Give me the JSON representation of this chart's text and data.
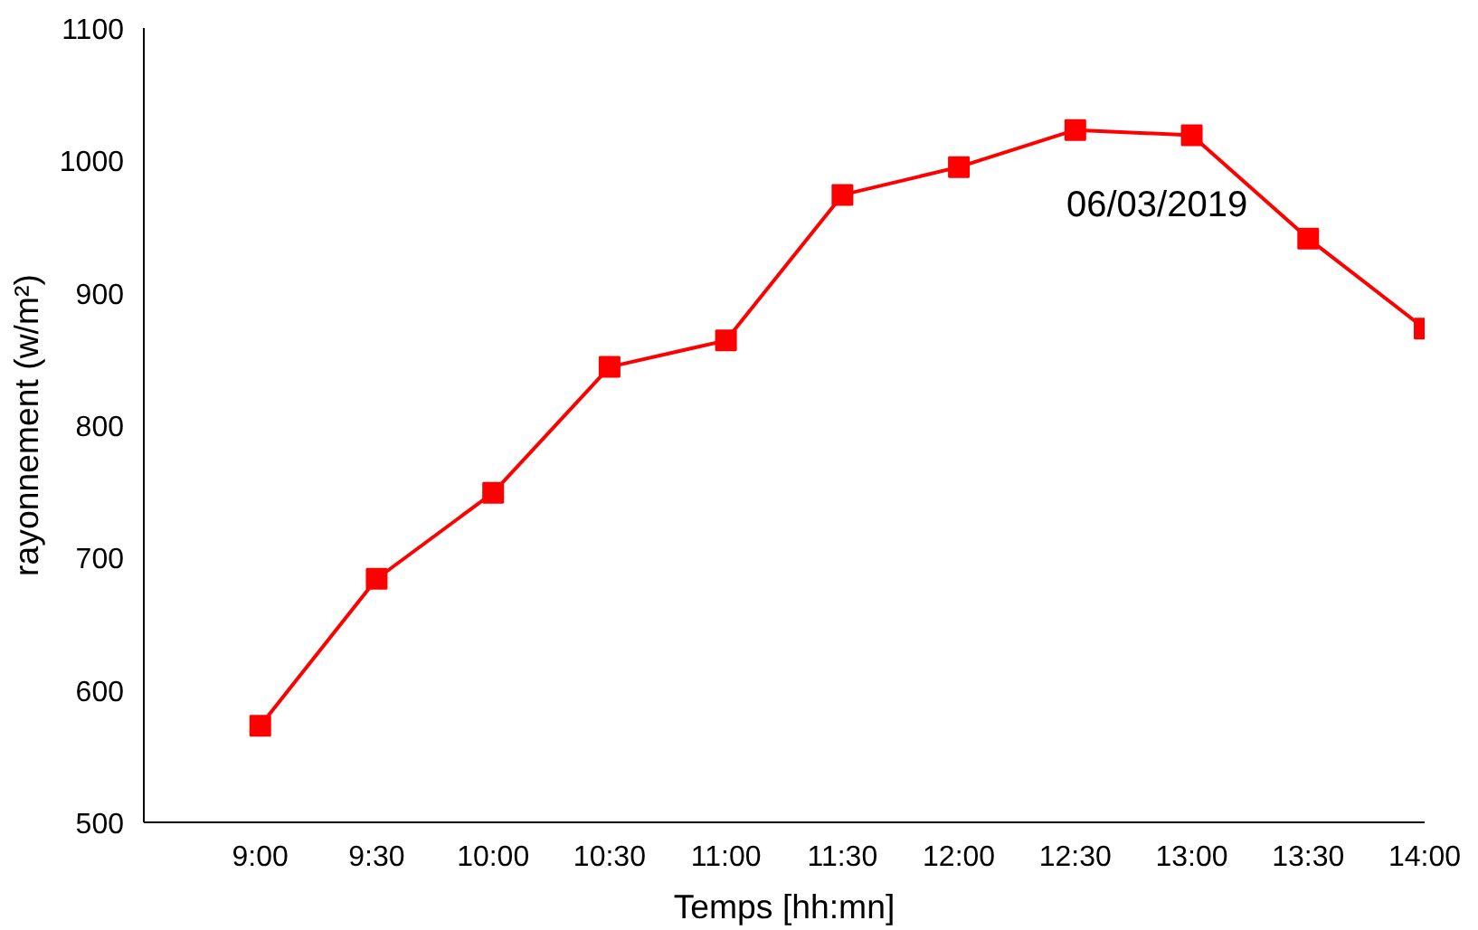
{
  "chart_data": {
    "type": "line",
    "xlabel": "Temps [hh:mn]",
    "ylabel": "rayonnement (w/m²)",
    "x": [
      9,
      9.5,
      10,
      10.5,
      11,
      11.5,
      12,
      12.5,
      13,
      13.5,
      14
    ],
    "series": [
      {
        "color": "#ff0000",
        "values": [
          573,
          684,
          749,
          844,
          864,
          974,
          995,
          1023,
          1019,
          941,
          873
        ]
      }
    ],
    "xlim": [
      8.5,
      14
    ],
    "xticks": [
      {
        "value": 9,
        "label": "9:00"
      },
      {
        "value": 9.5,
        "label": "9:30"
      },
      {
        "value": 10,
        "label": "10:00"
      },
      {
        "value": 10.5,
        "label": "10:30"
      },
      {
        "value": 11,
        "label": "11:00"
      },
      {
        "value": 11.5,
        "label": "11:30"
      },
      {
        "value": 12,
        "label": "12:00"
      },
      {
        "value": 12.5,
        "label": "12:30"
      },
      {
        "value": 13,
        "label": "13:00"
      },
      {
        "value": 13.5,
        "label": "13:30"
      },
      {
        "value": 14,
        "label": "14:00"
      }
    ],
    "ylim": [
      500,
      1100
    ],
    "yticks": [
      500,
      600,
      700,
      800,
      900,
      1000,
      1100
    ],
    "annotations": [
      "06/03/2019"
    ],
    "marker": "square",
    "line_style": "solid",
    "grid": false
  }
}
